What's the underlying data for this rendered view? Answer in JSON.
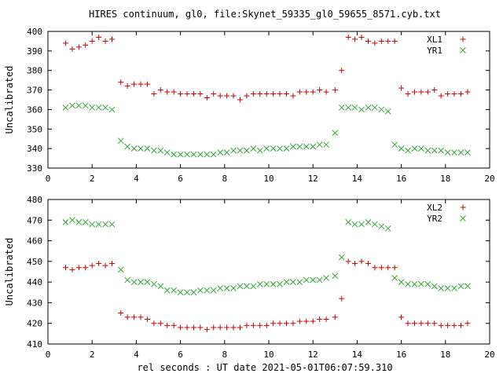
{
  "figure": {
    "title": "HIRES continuum, gl0, file:Skynet_59335_gl0_59655_8571.cyb.txt",
    "xlabel": "rel seconds : UT date 2021-05-01T06:07:59.310"
  },
  "colors": {
    "red": "#cc0000",
    "green": "#33aa33"
  },
  "chart_data": [
    {
      "type": "scatter",
      "ylabel": "Uncalibrated",
      "xlim": [
        0,
        20
      ],
      "ylim": [
        330,
        400
      ],
      "xticks": [
        0,
        2,
        4,
        6,
        8,
        10,
        12,
        14,
        16,
        18,
        20
      ],
      "yticks": [
        330,
        340,
        350,
        360,
        370,
        380,
        390,
        400
      ],
      "legend_position": "top-right",
      "series": [
        {
          "name": "XL1",
          "marker": "+",
          "color": "#cc0000",
          "x": [
            0.8,
            1.1,
            1.4,
            1.7,
            2.0,
            2.3,
            2.6,
            2.9,
            3.3,
            3.6,
            3.9,
            4.2,
            4.5,
            4.8,
            5.1,
            5.4,
            5.7,
            6.0,
            6.3,
            6.6,
            6.9,
            7.2,
            7.5,
            7.8,
            8.1,
            8.4,
            8.7,
            9.0,
            9.3,
            9.6,
            9.9,
            10.2,
            10.5,
            10.8,
            11.1,
            11.4,
            11.7,
            12.0,
            12.3,
            12.6,
            13.0,
            13.3,
            13.6,
            13.9,
            14.2,
            14.5,
            14.8,
            15.1,
            15.4,
            15.7,
            16.0,
            16.3,
            16.6,
            16.9,
            17.2,
            17.5,
            17.8,
            18.1,
            18.4,
            18.7,
            19.0
          ],
          "y": [
            394,
            391,
            392,
            393,
            395,
            397,
            395,
            396,
            374,
            372,
            373,
            373,
            373,
            368,
            370,
            369,
            369,
            368,
            368,
            368,
            368,
            366,
            368,
            367,
            367,
            367,
            365,
            367,
            368,
            368,
            368,
            368,
            368,
            368,
            367,
            369,
            369,
            369,
            370,
            369,
            370,
            380,
            397,
            396,
            397,
            395,
            394,
            395,
            395,
            395,
            371,
            368,
            369,
            369,
            369,
            370,
            367,
            368,
            368,
            368,
            369
          ],
          "x_fix": [
            0.8,
            1.1,
            1.4,
            1.7,
            2.0,
            2.3,
            2.6,
            2.9,
            3.3,
            3.6,
            3.9,
            4.2,
            4.5,
            4.8,
            5.1,
            5.4,
            5.7,
            6.0,
            6.3,
            6.6,
            6.9,
            7.2,
            7.5,
            7.8,
            8.1,
            8.4,
            8.7,
            9.0,
            9.3,
            9.6,
            9.9,
            10.2,
            10.5,
            10.8,
            11.1,
            11.4,
            11.7,
            12.0,
            12.3,
            12.6,
            13.0,
            13.3,
            13.6,
            13.9,
            14.2,
            14.5,
            14.8,
            15.1,
            15.4,
            15.7,
            16.0,
            16.3,
            16.6,
            16.9,
            17.2,
            17.5,
            17.8,
            18.1,
            18.4,
            18.7,
            19.0
          ]
        },
        {
          "name": "YR1",
          "marker": "x",
          "color": "#33aa33",
          "x": [
            0.8,
            1.1,
            1.4,
            1.7,
            2.0,
            2.3,
            2.6,
            2.9,
            3.3,
            3.6,
            3.9,
            4.2,
            4.5,
            4.8,
            5.1,
            5.4,
            5.7,
            6.0,
            6.3,
            6.6,
            6.9,
            7.2,
            7.5,
            7.8,
            8.1,
            8.4,
            8.7,
            9.0,
            9.3,
            9.6,
            9.9,
            10.2,
            10.5,
            10.8,
            11.1,
            11.4,
            11.7,
            12.0,
            12.3,
            12.6,
            13.0,
            13.3,
            13.6,
            13.9,
            14.2,
            14.5,
            14.8,
            15.1,
            15.4,
            15.7,
            16.0,
            16.3,
            16.6,
            16.9,
            17.2,
            17.5,
            17.8,
            18.1,
            18.4,
            18.7,
            19.0
          ],
          "y": [
            361,
            362,
            362,
            362,
            361,
            361,
            361,
            360,
            344,
            341,
            340,
            340,
            340,
            339,
            339,
            338,
            337,
            337,
            337,
            337,
            337,
            337,
            337,
            338,
            338,
            339,
            339,
            339,
            340,
            339,
            340,
            340,
            340,
            340,
            341,
            341,
            341,
            341,
            342,
            342,
            348,
            361,
            361,
            361,
            360,
            361,
            361,
            360,
            359,
            342,
            340,
            339,
            340,
            340,
            339,
            339,
            339,
            338,
            338,
            338,
            338
          ]
        }
      ]
    },
    {
      "type": "scatter",
      "ylabel": "Uncalibrated",
      "xlim": [
        0,
        20
      ],
      "ylim": [
        410,
        480
      ],
      "xticks": [
        0,
        2,
        4,
        6,
        8,
        10,
        12,
        14,
        16,
        18,
        20
      ],
      "yticks": [
        410,
        420,
        430,
        440,
        450,
        460,
        470,
        480
      ],
      "legend_position": "top-right",
      "series": [
        {
          "name": "XL2",
          "marker": "+",
          "color": "#cc0000",
          "x": [
            0.8,
            1.1,
            1.4,
            1.7,
            2.0,
            2.3,
            2.6,
            2.9,
            3.3,
            3.6,
            3.9,
            4.2,
            4.5,
            4.8,
            5.1,
            5.4,
            5.7,
            6.0,
            6.3,
            6.6,
            6.9,
            7.2,
            7.5,
            7.8,
            8.1,
            8.4,
            8.7,
            9.0,
            9.3,
            9.6,
            9.9,
            10.2,
            10.5,
            10.8,
            11.1,
            11.4,
            11.7,
            12.0,
            12.3,
            12.6,
            13.0,
            13.3,
            13.6,
            13.9,
            14.2,
            14.5,
            14.8,
            15.1,
            15.4,
            15.7,
            16.0,
            16.3,
            16.6,
            16.9,
            17.2,
            17.5,
            17.8,
            18.1,
            18.4,
            18.7,
            19.0
          ],
          "y": [
            447,
            446,
            447,
            447,
            448,
            449,
            448,
            449,
            425,
            423,
            423,
            423,
            422,
            420,
            420,
            419,
            419,
            418,
            418,
            418,
            418,
            417,
            418,
            418,
            418,
            418,
            418,
            419,
            419,
            419,
            419,
            420,
            420,
            420,
            420,
            421,
            421,
            421,
            422,
            422,
            423,
            432,
            450,
            449,
            450,
            449,
            447,
            447,
            447,
            447,
            423,
            420,
            420,
            420,
            420,
            420,
            419,
            419,
            419,
            419,
            420
          ]
        },
        {
          "name": "YR2",
          "marker": "x",
          "color": "#33aa33",
          "x": [
            0.8,
            1.1,
            1.4,
            1.7,
            2.0,
            2.3,
            2.6,
            2.9,
            3.3,
            3.6,
            3.9,
            4.2,
            4.5,
            4.8,
            5.1,
            5.4,
            5.7,
            6.0,
            6.3,
            6.6,
            6.9,
            7.2,
            7.5,
            7.8,
            8.1,
            8.4,
            8.7,
            9.0,
            9.3,
            9.6,
            9.9,
            10.2,
            10.5,
            10.8,
            11.1,
            11.4,
            11.7,
            12.0,
            12.3,
            12.6,
            13.0,
            13.3,
            13.6,
            13.9,
            14.2,
            14.5,
            14.8,
            15.1,
            15.4,
            15.7,
            16.0,
            16.3,
            16.6,
            16.9,
            17.2,
            17.5,
            17.8,
            18.1,
            18.4,
            18.7,
            19.0
          ],
          "y": [
            469,
            470,
            469,
            469,
            468,
            468,
            468,
            468,
            446,
            441,
            440,
            440,
            440,
            439,
            438,
            436,
            436,
            435,
            435,
            435,
            436,
            436,
            436,
            437,
            437,
            437,
            438,
            438,
            438,
            439,
            439,
            439,
            439,
            440,
            440,
            440,
            441,
            441,
            441,
            442,
            443,
            452,
            469,
            468,
            468,
            469,
            468,
            467,
            466,
            442,
            440,
            439,
            439,
            439,
            439,
            438,
            437,
            437,
            437,
            438,
            438
          ]
        }
      ]
    }
  ]
}
